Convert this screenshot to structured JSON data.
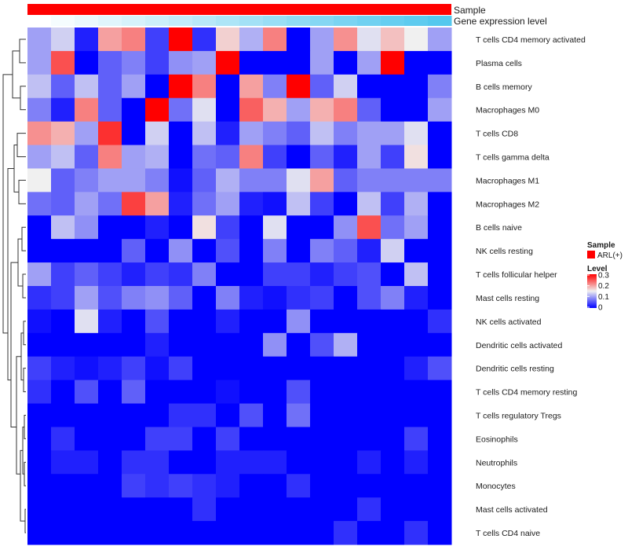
{
  "chart_data": {
    "type": "heatmap",
    "annotation_rows": {
      "sample_label": "Sample",
      "expression_label": "Gene expression level",
      "sample_color": "#ff0000",
      "expression_gradient": [
        "#ffffff",
        "#55c8ee"
      ]
    },
    "rows": [
      "T cells CD4 memory activated",
      "Plasma cells",
      "B cells memory",
      "Macrophages M0",
      "T cells CD8",
      "T cells gamma delta",
      "Macrophages M1",
      "Macrophages M2",
      "B cells naive",
      "NK cells resting",
      "T cells follicular helper",
      "Mast cells resting",
      "NK cells activated",
      "Dendritic cells activated",
      "Dendritic cells resting",
      "T cells CD4 memory resting",
      "T cells regulatory  Tregs",
      "Eosinophils",
      "Neutrophils",
      "Monocytes",
      "Mast cells activated",
      "T cells CD4 naive"
    ],
    "n_columns": 18,
    "values": [
      [
        0.1,
        0.13,
        0.02,
        0.2,
        0.22,
        0.04,
        0.33,
        0.03,
        0.17,
        0.11,
        0.22,
        0.0,
        0.1,
        0.21,
        0.14,
        0.18,
        0.15,
        0.1
      ],
      [
        0.1,
        0.25,
        0.0,
        0.06,
        0.08,
        0.04,
        0.09,
        0.1,
        0.32,
        0.0,
        0.0,
        0.0,
        0.1,
        0.0,
        0.1,
        0.31,
        0.0,
        0.0
      ],
      [
        0.12,
        0.06,
        0.12,
        0.06,
        0.1,
        0.0,
        0.31,
        0.22,
        0.0,
        0.2,
        0.08,
        0.32,
        0.06,
        0.13,
        0.0,
        0.0,
        0.0,
        0.08
      ],
      [
        0.08,
        0.02,
        0.22,
        0.06,
        0.0,
        0.33,
        0.07,
        0.14,
        0.0,
        0.24,
        0.19,
        0.1,
        0.19,
        0.22,
        0.06,
        0.0,
        0.0,
        0.1
      ],
      [
        0.21,
        0.19,
        0.1,
        0.27,
        0.0,
        0.13,
        0.0,
        0.12,
        0.02,
        0.1,
        0.08,
        0.06,
        0.12,
        0.08,
        0.1,
        0.1,
        0.14,
        0.0
      ],
      [
        0.1,
        0.12,
        0.06,
        0.22,
        0.1,
        0.11,
        0.0,
        0.07,
        0.06,
        0.22,
        0.04,
        0.0,
        0.06,
        0.02,
        0.1,
        0.04,
        0.16,
        0.0
      ],
      [
        0.15,
        0.06,
        0.08,
        0.1,
        0.1,
        0.08,
        0.01,
        0.06,
        0.11,
        0.08,
        0.08,
        0.14,
        0.2,
        0.06,
        0.08,
        0.08,
        0.08,
        0.08
      ],
      [
        0.07,
        0.06,
        0.1,
        0.07,
        0.26,
        0.2,
        0.02,
        0.07,
        0.1,
        0.02,
        0.01,
        0.12,
        0.04,
        0.0,
        0.12,
        0.04,
        0.11,
        0.0
      ],
      [
        0.0,
        0.12,
        0.09,
        0.0,
        0.0,
        0.02,
        0.0,
        0.16,
        0.04,
        0.0,
        0.14,
        0.0,
        0.0,
        0.09,
        0.25,
        0.07,
        0.1,
        0.0
      ],
      [
        0.0,
        0.0,
        0.0,
        0.0,
        0.06,
        0.0,
        0.09,
        0.0,
        0.05,
        0.0,
        0.08,
        0.0,
        0.08,
        0.06,
        0.02,
        0.13,
        0.0,
        0.0
      ],
      [
        0.1,
        0.04,
        0.06,
        0.04,
        0.02,
        0.04,
        0.03,
        0.08,
        0.0,
        0.0,
        0.04,
        0.04,
        0.02,
        0.04,
        0.05,
        0.0,
        0.12,
        0.0
      ],
      [
        0.03,
        0.04,
        0.1,
        0.05,
        0.08,
        0.09,
        0.06,
        0.0,
        0.08,
        0.02,
        0.01,
        0.03,
        0.04,
        0.0,
        0.05,
        0.08,
        0.02,
        0.0
      ],
      [
        0.01,
        0.0,
        0.14,
        0.02,
        0.0,
        0.05,
        0.0,
        0.0,
        0.02,
        0.0,
        0.0,
        0.09,
        0.0,
        0.0,
        0.0,
        0.0,
        0.0,
        0.03
      ],
      [
        0.0,
        0.0,
        0.0,
        0.0,
        0.0,
        0.02,
        0.0,
        0.0,
        0.0,
        0.0,
        0.09,
        0.0,
        0.05,
        0.11,
        0.0,
        0.0,
        0.0,
        0.0
      ],
      [
        0.04,
        0.02,
        0.01,
        0.02,
        0.04,
        0.01,
        0.04,
        0.0,
        0.0,
        0.0,
        0.0,
        0.0,
        0.0,
        0.0,
        0.0,
        0.0,
        0.02,
        0.05
      ],
      [
        0.03,
        0.0,
        0.05,
        0.0,
        0.06,
        0.0,
        0.0,
        0.0,
        0.01,
        0.0,
        0.0,
        0.05,
        0.0,
        0.0,
        0.0,
        0.0,
        0.0,
        0.0
      ],
      [
        0.0,
        0.0,
        0.0,
        0.0,
        0.0,
        0.0,
        0.03,
        0.03,
        0.0,
        0.05,
        0.0,
        0.07,
        0.0,
        0.0,
        0.0,
        0.0,
        0.0,
        0.0
      ],
      [
        0.0,
        0.03,
        0.0,
        0.0,
        0.0,
        0.04,
        0.04,
        0.0,
        0.04,
        0.0,
        0.0,
        0.0,
        0.0,
        0.0,
        0.0,
        0.0,
        0.04,
        0.0
      ],
      [
        0.0,
        0.02,
        0.02,
        0.0,
        0.03,
        0.03,
        0.0,
        0.0,
        0.02,
        0.02,
        0.02,
        0.0,
        0.0,
        0.0,
        0.02,
        0.0,
        0.02,
        0.0
      ],
      [
        0.0,
        0.0,
        0.0,
        0.0,
        0.04,
        0.03,
        0.04,
        0.03,
        0.02,
        0.0,
        0.0,
        0.03,
        0.0,
        0.0,
        0.0,
        0.0,
        0.0,
        0.0
      ],
      [
        0.0,
        0.0,
        0.0,
        0.0,
        0.0,
        0.0,
        0.0,
        0.03,
        0.0,
        0.0,
        0.0,
        0.0,
        0.0,
        0.0,
        0.03,
        0.0,
        0.0,
        0.0
      ],
      [
        0.0,
        0.0,
        0.0,
        0.0,
        0.0,
        0.0,
        0.0,
        0.0,
        0.0,
        0.0,
        0.0,
        0.0,
        0.0,
        0.03,
        0.0,
        0.0,
        0.03,
        0.0
      ]
    ],
    "expression_levels": [
      0.0,
      0.06,
      0.12,
      0.18,
      0.24,
      0.3,
      0.36,
      0.42,
      0.48,
      0.54,
      0.6,
      0.66,
      0.72,
      0.78,
      0.84,
      0.9,
      0.95,
      1.0
    ],
    "color_scale": {
      "min": 0,
      "mid": 0.15,
      "max": 0.3,
      "low_color": "#0000ff",
      "mid_color": "#f0f0f0",
      "high_color": "#ff0000"
    },
    "legend": {
      "sample_title": "Sample",
      "sample_entry": "ARL(+)",
      "level_title": "Level",
      "level_ticks": [
        "0.3",
        "0.2",
        "0.1",
        "0"
      ]
    },
    "dendrogram": "left, row clustering"
  }
}
